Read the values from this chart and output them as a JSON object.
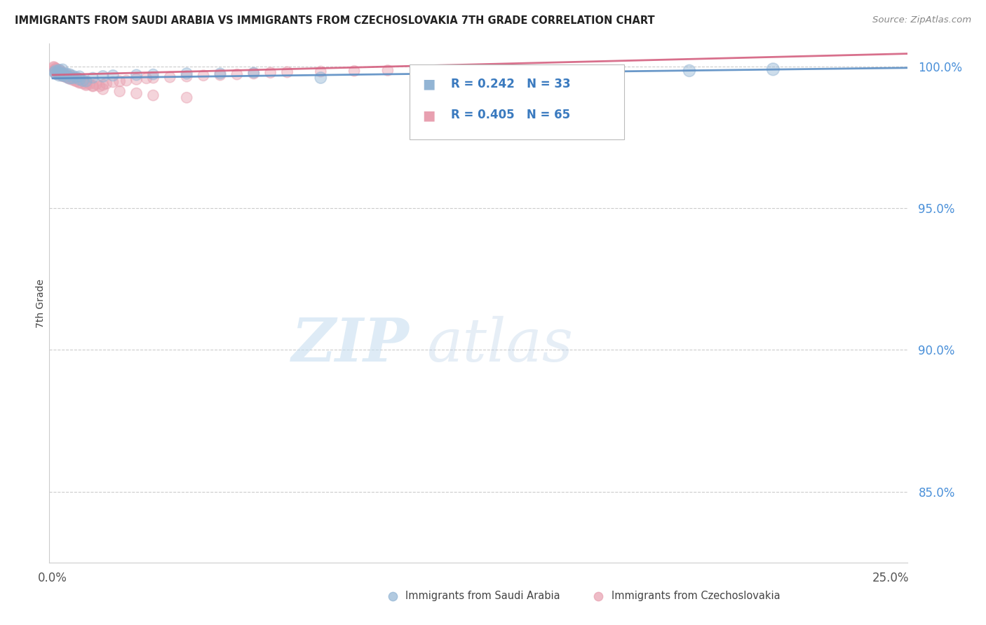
{
  "title": "IMMIGRANTS FROM SAUDI ARABIA VS IMMIGRANTS FROM CZECHOSLOVAKIA 7TH GRADE CORRELATION CHART",
  "source": "Source: ZipAtlas.com",
  "ylabel": "7th Grade",
  "ylim": [
    0.825,
    1.008
  ],
  "xlim": [
    -0.001,
    0.255
  ],
  "yticks": [
    0.85,
    0.9,
    0.95,
    1.0
  ],
  "ytick_labels": [
    "85.0%",
    "90.0%",
    "95.0%",
    "100.0%"
  ],
  "color_saudi": "#92b4d4",
  "color_czech": "#e8a0b0",
  "line_color_saudi": "#5b8ec4",
  "line_color_czech": "#d46080",
  "R_saudi": 0.242,
  "N_saudi": 33,
  "R_czech": 0.405,
  "N_czech": 65,
  "legend_saudi": "Immigrants from Saudi Arabia",
  "legend_czech": "Immigrants from Czechoslovakia",
  "watermark_ZIP": "ZIP",
  "watermark_atlas": "atlas",
  "saudi_x": [
    0.0005,
    0.001,
    0.001,
    0.0015,
    0.002,
    0.002,
    0.002,
    0.003,
    0.003,
    0.003,
    0.004,
    0.004,
    0.005,
    0.005,
    0.006,
    0.006,
    0.007,
    0.008,
    0.008,
    0.009,
    0.01,
    0.012,
    0.015,
    0.018,
    0.025,
    0.03,
    0.04,
    0.05,
    0.06,
    0.08,
    0.12,
    0.19,
    0.215
  ],
  "saudi_y": [
    0.998,
    0.9975,
    0.9985,
    0.9982,
    0.997,
    0.9978,
    0.9988,
    0.9972,
    0.9968,
    0.999,
    0.9965,
    0.9975,
    0.996,
    0.9972,
    0.9958,
    0.9968,
    0.9962,
    0.9955,
    0.9965,
    0.995,
    0.9948,
    0.996,
    0.9965,
    0.9968,
    0.997,
    0.9972,
    0.9975,
    0.9975,
    0.9978,
    0.996,
    0.994,
    0.9985,
    0.999
  ],
  "saudi_size": [
    50,
    60,
    55,
    50,
    65,
    58,
    52,
    70,
    55,
    48,
    60,
    52,
    65,
    55,
    50,
    48,
    52,
    58,
    50,
    55,
    52,
    48,
    55,
    52,
    50,
    48,
    52,
    50,
    48,
    55,
    52,
    60,
    65
  ],
  "czech_x": [
    0.0003,
    0.0005,
    0.0008,
    0.001,
    0.001,
    0.0012,
    0.0015,
    0.002,
    0.002,
    0.002,
    0.0025,
    0.003,
    0.003,
    0.003,
    0.004,
    0.004,
    0.005,
    0.005,
    0.006,
    0.006,
    0.007,
    0.007,
    0.008,
    0.008,
    0.009,
    0.01,
    0.01,
    0.011,
    0.012,
    0.013,
    0.014,
    0.015,
    0.016,
    0.018,
    0.02,
    0.022,
    0.025,
    0.028,
    0.03,
    0.035,
    0.04,
    0.045,
    0.05,
    0.055,
    0.06,
    0.065,
    0.07,
    0.08,
    0.09,
    0.1,
    0.001,
    0.002,
    0.003,
    0.004,
    0.005,
    0.006,
    0.007,
    0.008,
    0.01,
    0.012,
    0.015,
    0.02,
    0.025,
    0.03,
    0.04
  ],
  "czech_y": [
    0.9998,
    0.9995,
    0.9992,
    0.999,
    0.9988,
    0.9985,
    0.9982,
    0.998,
    0.9985,
    0.9978,
    0.9975,
    0.9972,
    0.9968,
    0.9978,
    0.9965,
    0.997,
    0.996,
    0.9968,
    0.9955,
    0.9962,
    0.995,
    0.9958,
    0.9945,
    0.9955,
    0.994,
    0.9935,
    0.9945,
    0.9938,
    0.9932,
    0.9938,
    0.993,
    0.9935,
    0.994,
    0.9945,
    0.9948,
    0.995,
    0.9955,
    0.9958,
    0.996,
    0.9962,
    0.9965,
    0.9968,
    0.997,
    0.9972,
    0.9975,
    0.9978,
    0.998,
    0.9982,
    0.9984,
    0.9986,
    0.9975,
    0.9972,
    0.9968,
    0.9962,
    0.9958,
    0.9952,
    0.9948,
    0.9942,
    0.9938,
    0.993,
    0.992,
    0.9912,
    0.9905,
    0.9898,
    0.989
  ],
  "czech_size": [
    50,
    55,
    52,
    60,
    58,
    52,
    55,
    65,
    58,
    62,
    52,
    68,
    60,
    55,
    58,
    52,
    62,
    55,
    50,
    52,
    55,
    50,
    52,
    48,
    50,
    55,
    52,
    48,
    50,
    52,
    48,
    50,
    52,
    48,
    50,
    48,
    52,
    48,
    50,
    48,
    50,
    48,
    50,
    48,
    50,
    48,
    50,
    48,
    48,
    48,
    55,
    52,
    50,
    48,
    50,
    48,
    50,
    48,
    50,
    48,
    50,
    48,
    50,
    48,
    48
  ]
}
